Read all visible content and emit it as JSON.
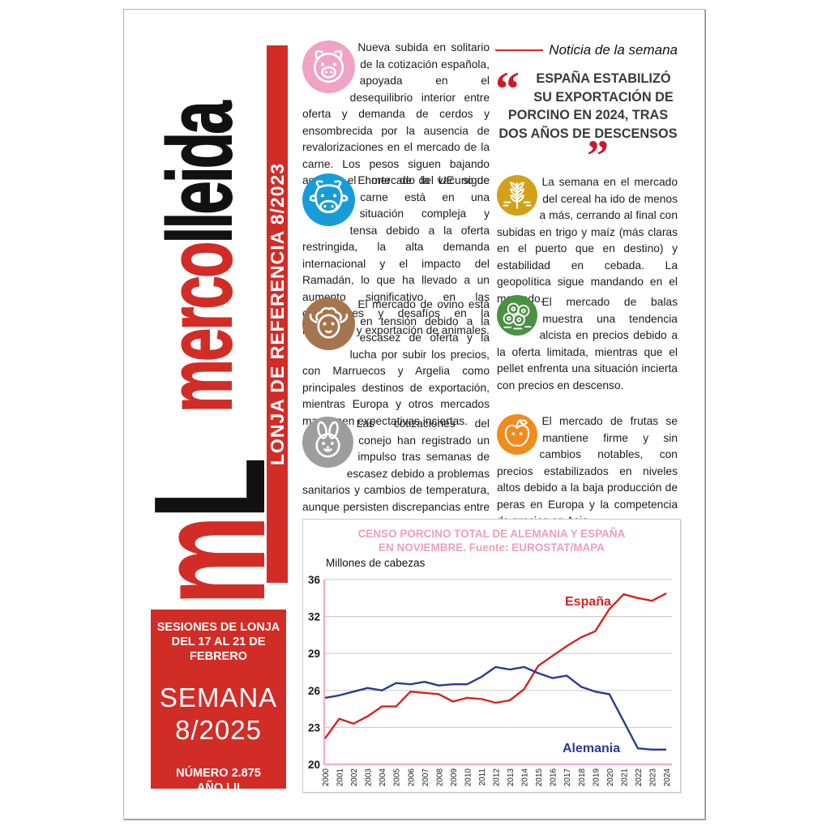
{
  "masthead": {
    "wordmark_red": "merco",
    "wordmark_black": "lleida",
    "monogram_red": "m",
    "monogram_black": "L",
    "strip_label": "LONJA DE REFERENCIA 8/2023"
  },
  "session_box": {
    "header_line1": "SESIONES DE LONJA",
    "header_line2": "DEL 17 AL 21 DE",
    "header_line3": "FEBRERO",
    "week_word": "SEMANA",
    "week_number": "8/2025",
    "issue_line1": "NÚMERO 2.875",
    "issue_line2": "AÑO LII"
  },
  "news_header": {
    "label": "Noticia de la semana"
  },
  "quote": {
    "open_mark": "“",
    "close_mark": "”",
    "text": "ESPAÑA ESTABILIZÓ SU EXPORTACIÓN DE PORCINO EN 2024, TRAS DOS AÑOS DE DESCENSOS"
  },
  "items": [
    {
      "icon": "pig",
      "color": "#f0a3c5",
      "text": "Nueva subida en solitario de la cotización española, apoyada en el desequilibrio interior entre oferta y demanda de cerdos y ensombrecida por la ausencia de revalorizaciones en el mercado de la carne. Los pesos siguen bajando aquí y el norte de la UE sigue atascado."
    },
    {
      "icon": "cow",
      "color": "#189cd8",
      "text": "El mercado del vacuno de carne está en una situación compleja y tensa debido a la oferta restringida, la alta demanda internacional y el impacto del Ramadán, lo que ha llevado a un aumento significativo en las cotizaciones y desafíos en la reposición y exportación de animales."
    },
    {
      "icon": "sheep",
      "color": "#a5754f",
      "text": "El mercado de ovino está en tensión debido a la escasez de oferta y la lucha por subir los precios, con Marruecos y Argelia como principales destinos de exportación, mientras Europa y otros mercados mantienen expectativas inciertas."
    },
    {
      "icon": "rabbit",
      "color": "#9d9da0",
      "text": "Las cotizaciones del conejo han registrado un impulso tras semanas de escasez debido a problemas sanitarios y cambios de temperatura, aunque persisten discrepancias entre granjeros y mataderos."
    },
    {
      "icon": "wheat",
      "color": "#d2a117",
      "text": "La semana en el mercado del cereal ha ido de menos a más, cerrando al final con subidas en trigo y maíz (más claras en el puerto que en destino) y estabilidad en cebada. La geopolítica sigue mandando en el mercado."
    },
    {
      "icon": "bales",
      "color": "#4b9142",
      "text": "El mercado de balas muestra una tendencia alcista en precios debido a la oferta limitada, mientras que el pellet enfrenta una situación incierta con precios en descenso."
    },
    {
      "icon": "apple",
      "color": "#f08b1d",
      "text": "El mercado de frutas se mantiene firme y sin cambios notables, con precios estabilizados en niveles altos debido a la baja producción de peras en Europa y la competencia de precios en Asia."
    }
  ],
  "chart_data": {
    "type": "line",
    "title": "CENSO PORCINO TOTAL DE ALEMANIA Y ESPAÑA",
    "subtitle": "EN NOVIEMBRE. Fuente: EUROSTAT/MAPA",
    "ylabel": "Millones de cabezas",
    "yticks": [
      20,
      23,
      26,
      29,
      32,
      36
    ],
    "ylim": [
      20,
      36
    ],
    "grid": true,
    "legend_position": "inline-labels",
    "x": [
      "2000",
      "2001",
      "2002",
      "2003",
      "2004",
      "2005",
      "2006",
      "2007",
      "2008",
      "2009",
      "2010",
      "2011",
      "2012",
      "2013",
      "2014",
      "2015",
      "2016",
      "2017",
      "2018",
      "2019",
      "2020",
      "2021",
      "2022",
      "2023",
      "2024"
    ],
    "series": [
      {
        "name": "España",
        "color": "#d6231f",
        "values": [
          22.1,
          23.7,
          23.3,
          23.9,
          24.7,
          24.7,
          25.9,
          25.8,
          25.7,
          25.1,
          25.4,
          25.3,
          25.0,
          25.2,
          26.1,
          28.0,
          28.8,
          29.6,
          30.3,
          30.8,
          32.8,
          34.4,
          34.0,
          33.7,
          34.5
        ]
      },
      {
        "name": "Alemania",
        "color": "#2b3a92",
        "values": [
          25.4,
          25.6,
          25.9,
          26.2,
          26.0,
          26.6,
          26.5,
          26.7,
          26.4,
          26.5,
          26.5,
          27.1,
          27.9,
          27.7,
          27.9,
          27.4,
          27.0,
          27.2,
          26.3,
          25.9,
          25.7,
          23.5,
          21.3,
          21.2,
          21.2
        ]
      }
    ],
    "axis_colors": {
      "grid": "#cfcfcf",
      "axis_pink": "#f6aecd",
      "tick_text": "#1a1a1a"
    }
  }
}
